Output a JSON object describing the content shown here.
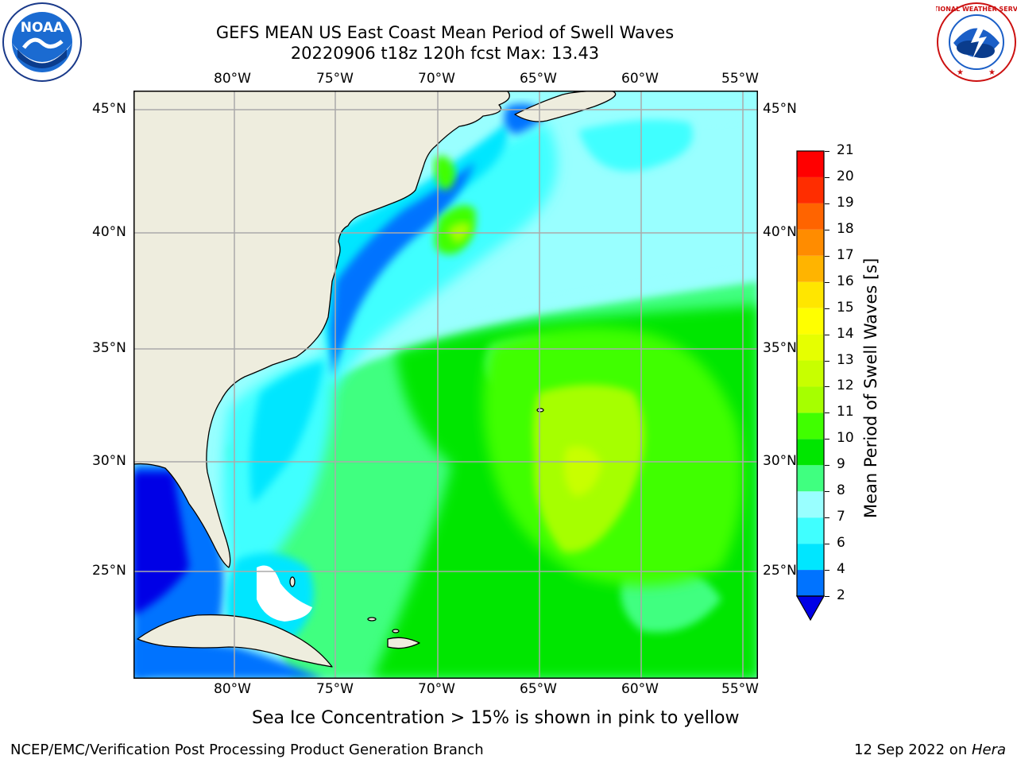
{
  "title": {
    "line1": "GEFS MEAN US East Coast Mean Period of Swell Waves",
    "line2": "20220906 t18z 120h fcst   Max: 13.43"
  },
  "map": {
    "lon_labels": [
      "80°W",
      "75°W",
      "70°W",
      "65°W",
      "60°W",
      "55°W"
    ],
    "lat_labels": [
      "45°N",
      "40°N",
      "35°N",
      "30°N",
      "25°N"
    ],
    "land_color": "#eeedde",
    "grid_color": "#aaaaaa"
  },
  "colorbar": {
    "title": "Mean Period of Swell Waves [s]",
    "ticks": [
      "2",
      "4",
      "6",
      "7",
      "8",
      "9",
      "10",
      "11",
      "12",
      "13",
      "14",
      "15",
      "16",
      "17",
      "18",
      "19",
      "20",
      "21"
    ],
    "colors": [
      "#0000e6",
      "#0073ff",
      "#00e6ff",
      "#40ffff",
      "#99ffff",
      "#40ff80",
      "#00e600",
      "#40ff00",
      "#a6ff00",
      "#c8ff00",
      "#e6ff00",
      "#ffff00",
      "#ffe600",
      "#ffb400",
      "#ff8c00",
      "#ff6400",
      "#ff2d00",
      "#ff0000"
    ]
  },
  "note": "Sea Ice Concentration > 15% is shown in pink to yellow",
  "footer": {
    "left": "NCEP/EMC/Verification Post Processing Product Generation Branch",
    "right_prefix": "12 Sep 2022 on ",
    "right_host": "Hera"
  },
  "logos": {
    "noaa_text": "NOAA",
    "nws_text": "NATIONAL WEATHER SERVICE"
  }
}
